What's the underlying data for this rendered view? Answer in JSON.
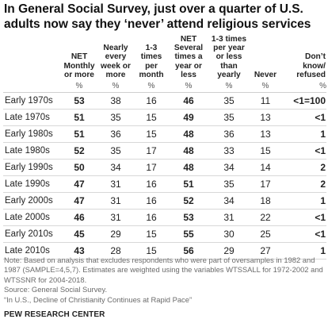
{
  "title": "In General Social Survey, just over a quarter of U.S. adults now say they ‘never’ attend religious services",
  "chart_data": {
    "type": "table",
    "columns": [
      {
        "key": "period",
        "label": ""
      },
      {
        "key": "net_monthly",
        "label": "NET Monthly or more",
        "unit": "%",
        "bold": true
      },
      {
        "key": "nearly_weekly",
        "label": "Nearly every week or more",
        "unit": "%",
        "bold": false
      },
      {
        "key": "per_month",
        "label": "1-3 times per month",
        "unit": "%",
        "bold": false
      },
      {
        "key": "net_several_year",
        "label": "NET Several times a year or less",
        "unit": "%",
        "bold": true
      },
      {
        "key": "per_year",
        "label": "1-3 times per year or less than yearly",
        "unit": "%",
        "bold": false
      },
      {
        "key": "never",
        "label": "Never",
        "unit": "%",
        "bold": false
      },
      {
        "key": "dk",
        "label": "Don’t know/ refused",
        "unit": "%",
        "bold": true
      }
    ],
    "rows": [
      {
        "period": "Early 1970s",
        "values": [
          "53",
          "38",
          "16",
          "46",
          "35",
          "11",
          "<1=100"
        ]
      },
      {
        "period": "Late 1970s",
        "values": [
          "51",
          "35",
          "15",
          "49",
          "35",
          "13",
          "<1"
        ]
      },
      {
        "period": "Early 1980s",
        "values": [
          "51",
          "36",
          "15",
          "48",
          "36",
          "13",
          "1"
        ]
      },
      {
        "period": "Late 1980s",
        "values": [
          "52",
          "35",
          "17",
          "48",
          "33",
          "15",
          "<1"
        ]
      },
      {
        "period": "Early 1990s",
        "values": [
          "50",
          "34",
          "17",
          "48",
          "34",
          "14",
          "2"
        ]
      },
      {
        "period": "Late 1990s",
        "values": [
          "47",
          "31",
          "16",
          "51",
          "35",
          "17",
          "2"
        ]
      },
      {
        "period": "Early 2000s",
        "values": [
          "47",
          "31",
          "16",
          "52",
          "34",
          "18",
          "1"
        ]
      },
      {
        "period": "Late 2000s",
        "values": [
          "46",
          "31",
          "16",
          "53",
          "31",
          "22",
          "<1"
        ]
      },
      {
        "period": "Early 2010s",
        "values": [
          "45",
          "29",
          "15",
          "55",
          "30",
          "25",
          "<1"
        ]
      },
      {
        "period": "Late 2010s",
        "values": [
          "43",
          "28",
          "15",
          "56",
          "29",
          "27",
          "1"
        ]
      }
    ]
  },
  "notes": {
    "line1": "Note: Based on analysis that excludes respondents who were part of oversamples in 1982 and 1987 (SAMPLE=4,5,7). Estimates are weighted using the variables WTSSALL for 1972-2002 and WTSSNR for 2004-2018.",
    "source": "Source: General Social Survey.",
    "report": "“In U.S., Decline of Christianity Continues at Rapid Pace”"
  },
  "brand": "PEW RESEARCH CENTER"
}
